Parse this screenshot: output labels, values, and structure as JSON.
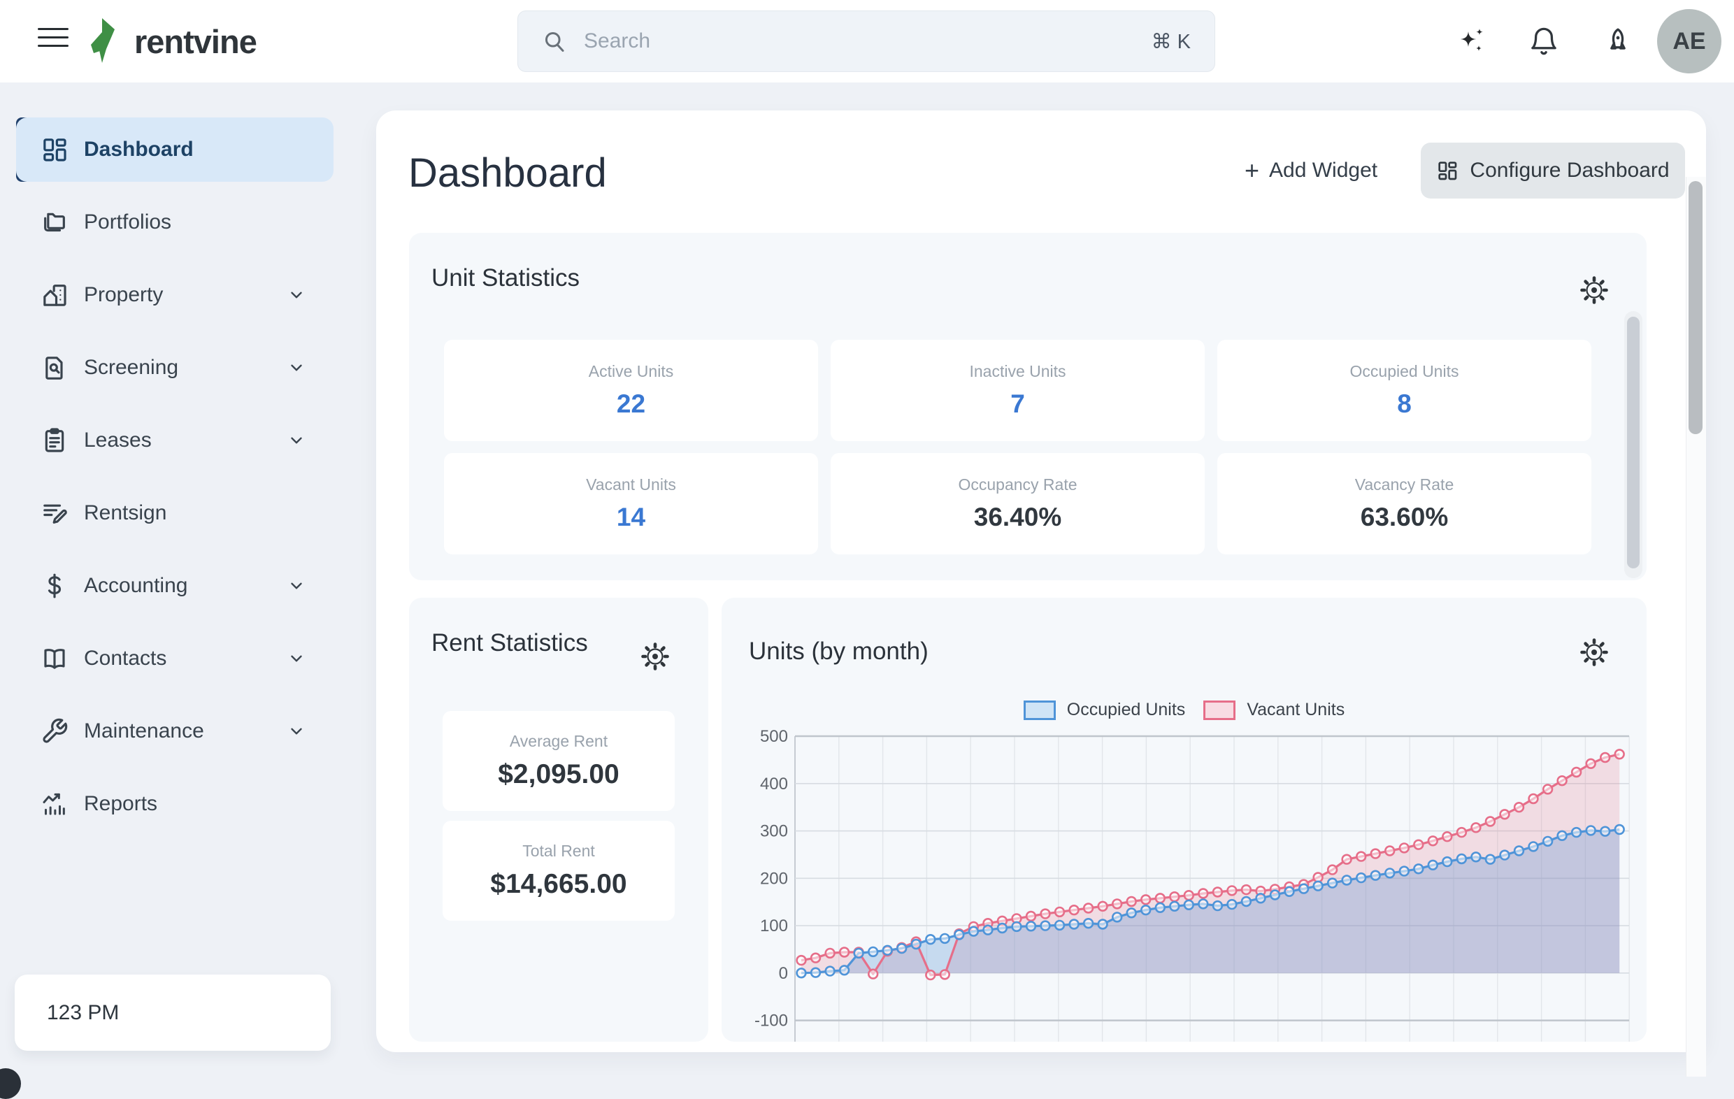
{
  "topbar": {
    "brand": "rentvine",
    "search": {
      "placeholder": "Search",
      "shortcut": "⌘ K"
    },
    "avatar_initials": "AE"
  },
  "sidebar": {
    "items": [
      {
        "label": "Dashboard",
        "active": true,
        "chevron": false
      },
      {
        "label": "Portfolios",
        "active": false,
        "chevron": false
      },
      {
        "label": "Property",
        "active": false,
        "chevron": true
      },
      {
        "label": "Screening",
        "active": false,
        "chevron": true
      },
      {
        "label": "Leases",
        "active": false,
        "chevron": true
      },
      {
        "label": "Rentsign",
        "active": false,
        "chevron": false
      },
      {
        "label": "Accounting",
        "active": false,
        "chevron": true
      },
      {
        "label": "Contacts",
        "active": false,
        "chevron": true
      },
      {
        "label": "Maintenance",
        "active": false,
        "chevron": true
      },
      {
        "label": "Reports",
        "active": false,
        "chevron": false
      }
    ],
    "clock": "123 PM"
  },
  "header": {
    "title": "Dashboard",
    "add_widget_plus": "+",
    "add_widget_label": "Add Widget",
    "configure_label": "Configure Dashboard"
  },
  "widgets": {
    "unit_statistics": {
      "title": "Unit Statistics",
      "cards": [
        {
          "label": "Active Units",
          "value": "22"
        },
        {
          "label": "Inactive Units",
          "value": "7"
        },
        {
          "label": "Occupied Units",
          "value": "8"
        },
        {
          "label": "Vacant Units",
          "value": "14"
        },
        {
          "label": "Occupancy Rate",
          "value": "36.40%"
        },
        {
          "label": "Vacancy Rate",
          "value": "63.60%"
        }
      ]
    },
    "rent_statistics": {
      "title": "Rent Statistics",
      "cards": [
        {
          "label": "Average Rent",
          "value": "$2,095.00"
        },
        {
          "label": "Total Rent",
          "value": "$14,665.00"
        }
      ]
    },
    "units_by_month": {
      "title": "Units (by month)"
    }
  },
  "colors": {
    "page_bg": "#eef1f6",
    "widget_bg": "#f5f8fb",
    "accent_blue_value": "#3a78d2",
    "sidebar_active_bg": "#d8e8f8",
    "sidebar_active_bar": "#20406b",
    "sidebar_active_text": "#1d4265"
  },
  "chart_data": {
    "type": "line",
    "title": "Units (by month)",
    "legend_position": "top",
    "grid": true,
    "ylim": [
      -100,
      500
    ],
    "y_ticks": [
      500,
      400,
      300,
      200,
      100,
      0,
      -100
    ],
    "x_tick_labels_visible": false,
    "points": 58,
    "series": [
      {
        "name": "Occupied Units",
        "color": "#4f94d8",
        "fill": "rgba(91,148,211,0.30)",
        "swatch_fill": "#cfe4f6",
        "values": [
          0,
          1,
          4,
          6,
          42,
          45,
          48,
          52,
          61,
          71,
          73,
          81,
          88,
          91,
          95,
          98,
          99,
          100,
          101,
          103,
          105,
          103,
          118,
          127,
          133,
          138,
          141,
          144,
          146,
          142,
          145,
          151,
          158,
          165,
          172,
          178,
          184,
          190,
          196,
          201,
          206,
          211,
          215,
          220,
          228,
          235,
          241,
          245,
          240,
          249,
          258,
          267,
          278,
          290,
          297,
          301,
          299,
          303
        ]
      },
      {
        "name": "Vacant Units",
        "color": "#e66e89",
        "fill": "rgba(226,109,136,0.20)",
        "swatch_fill": "#f8dce3",
        "values": [
          27,
          32,
          42,
          44,
          44,
          -2,
          46,
          54,
          66,
          -4,
          -3,
          83,
          98,
          105,
          110,
          115,
          120,
          125,
          129,
          133,
          137,
          141,
          146,
          151,
          155,
          158,
          161,
          164,
          168,
          171,
          174,
          176,
          173,
          177,
          182,
          187,
          202,
          218,
          240,
          246,
          252,
          258,
          264,
          271,
          279,
          288,
          297,
          307,
          320,
          335,
          350,
          368,
          388,
          406,
          424,
          442,
          455,
          462
        ]
      }
    ]
  }
}
